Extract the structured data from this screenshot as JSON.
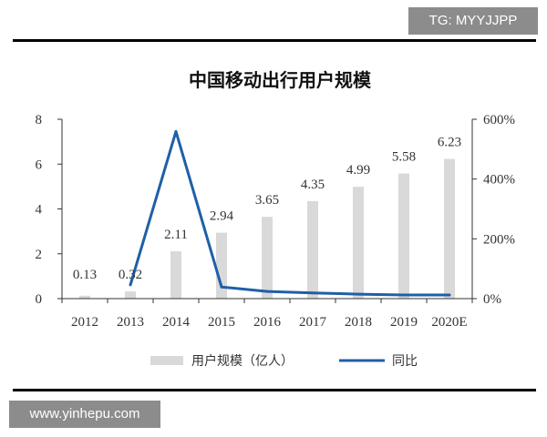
{
  "watermarks": {
    "top": "TG: MYYJJPP",
    "bottom": "www.yinhepu.com"
  },
  "chart_data": {
    "type": "bar",
    "title": "中国移动出行用户规模",
    "categories": [
      "2012",
      "2013",
      "2014",
      "2015",
      "2016",
      "2017",
      "2018",
      "2019",
      "2020E"
    ],
    "series": [
      {
        "name": "用户规模（亿人）",
        "type": "bar",
        "axis": "left",
        "color": "#d9d9d9",
        "values": [
          0.13,
          0.32,
          2.11,
          2.94,
          3.65,
          4.35,
          4.99,
          5.58,
          6.23
        ]
      },
      {
        "name": "同比",
        "type": "line",
        "axis": "right",
        "color": "#1f5fa8",
        "values": [
          null,
          0.46,
          5.59,
          0.39,
          0.24,
          0.19,
          0.15,
          0.12,
          0.12
        ]
      }
    ],
    "data_labels": [
      "0.13",
      "0.32",
      "2.11",
      "2.94",
      "3.65",
      "4.35",
      "4.99",
      "5.58",
      "6.23"
    ],
    "y_left": {
      "ylim": [
        0,
        8
      ],
      "ticks": [
        "0",
        "2",
        "4",
        "6",
        "8"
      ],
      "tick_values": [
        0,
        2,
        4,
        6,
        8
      ]
    },
    "y_right": {
      "ylim": [
        0,
        6
      ],
      "ticks": [
        "0%",
        "200%",
        "400%",
        "600%"
      ],
      "tick_values": [
        0,
        2,
        4,
        6
      ]
    },
    "legend_position": "bottom",
    "grid": false
  }
}
